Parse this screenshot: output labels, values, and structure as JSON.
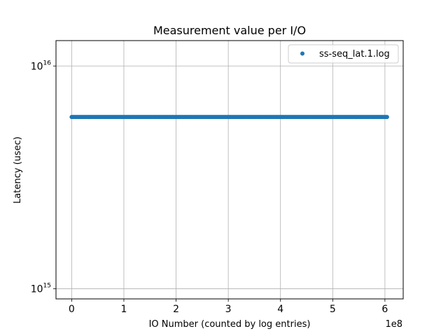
{
  "chart_data": {
    "type": "scatter",
    "title": "Measurement value per I/O",
    "xlabel": "IO Number (counted by log entries)",
    "ylabel": "Latency (usec)",
    "x_offset_label": "1e8",
    "x_scale_factor": 100000000,
    "xlim": [
      -30000000,
      635000000
    ],
    "xticks": [
      0,
      100000000,
      200000000,
      300000000,
      400000000,
      500000000,
      600000000
    ],
    "xtick_labels": [
      "0",
      "1",
      "2",
      "3",
      "4",
      "5",
      "6"
    ],
    "yscale": "log",
    "ylim": [
      900000000000000,
      13000000000000000
    ],
    "yticks": [
      1000000000000000,
      10000000000000000
    ],
    "ytick_labels": [
      {
        "base": "10",
        "exp": "15"
      },
      {
        "base": "10",
        "exp": "16"
      }
    ],
    "grid": true,
    "legend_position": "upper right",
    "series": [
      {
        "name": "ss-seq_lat.1.log",
        "color": "#1f77b4",
        "x_range": [
          0,
          604000000
        ],
        "y_value": 5900000000000000
      }
    ]
  }
}
